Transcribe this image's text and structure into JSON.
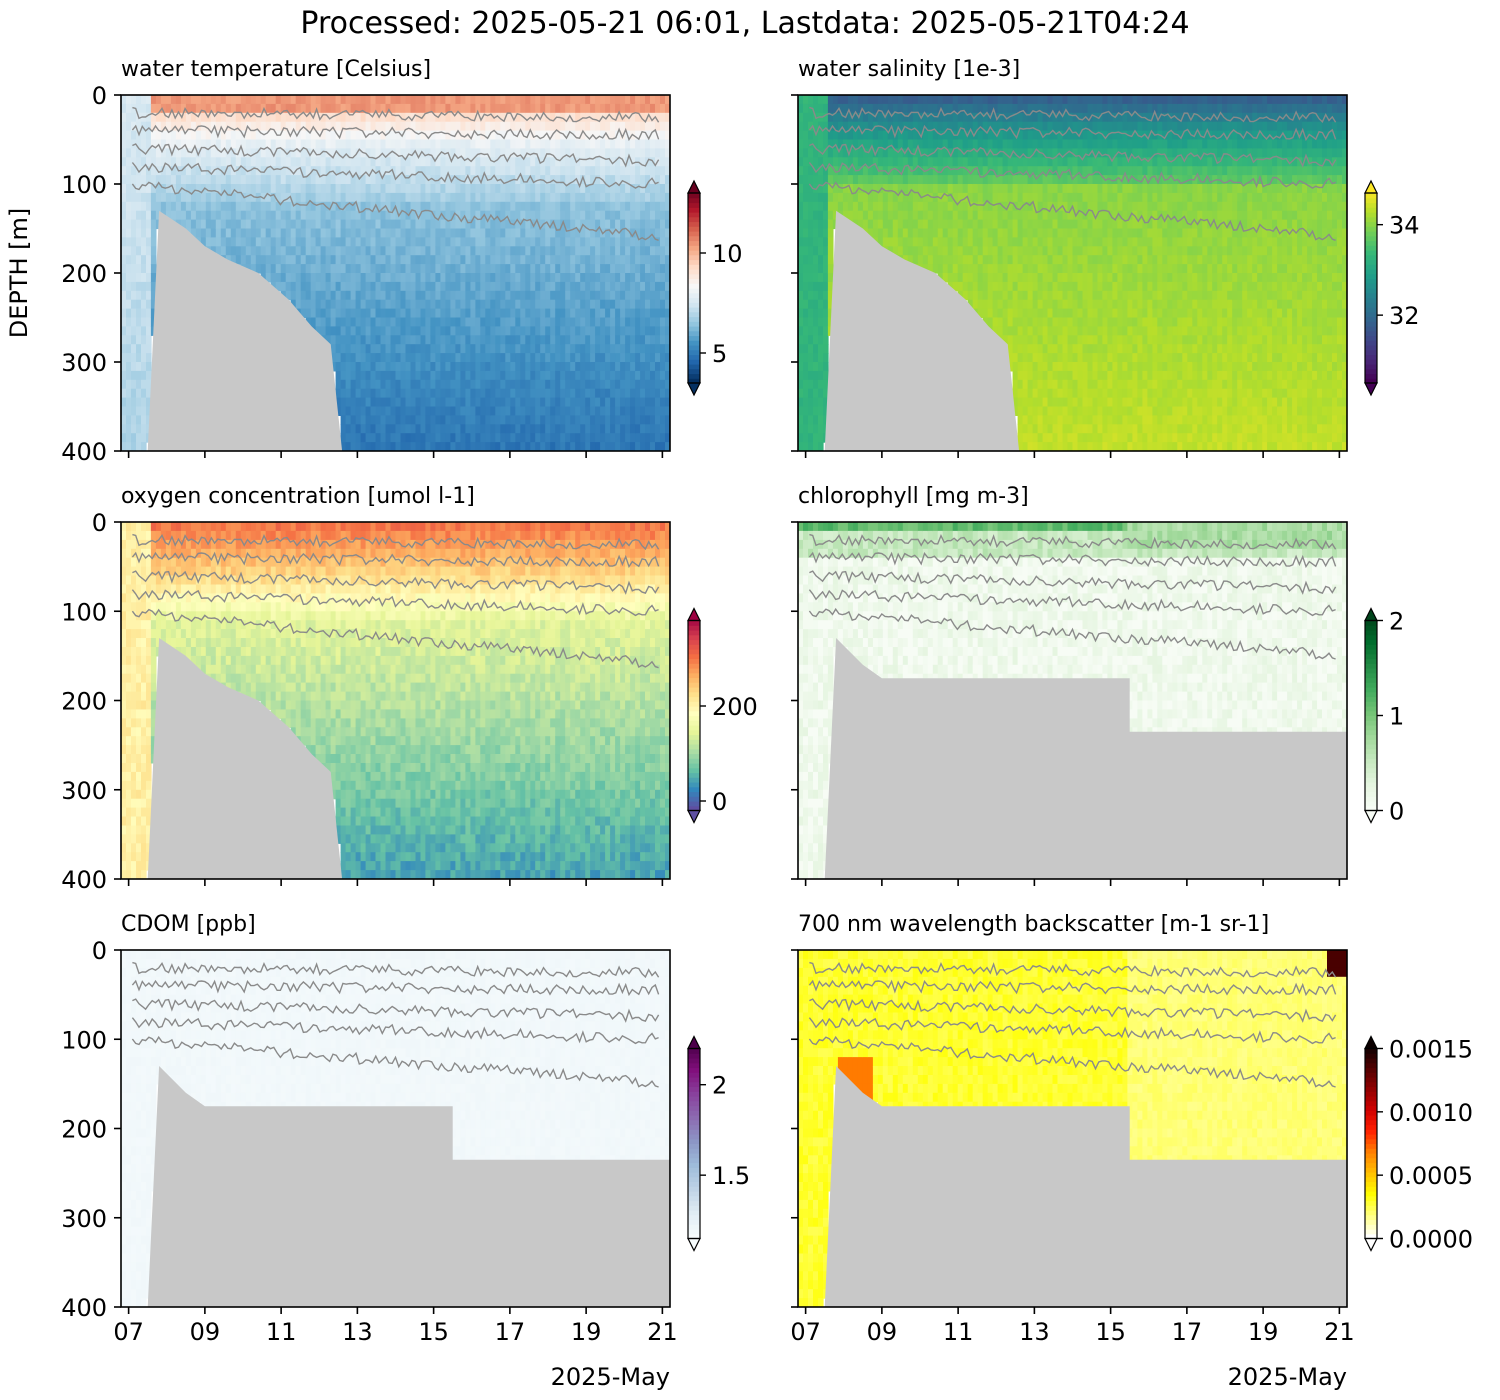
{
  "figure": {
    "title": "Processed: 2025-05-21 06:01, Lastdata: 2025-05-21T04:24",
    "ylabel": "DEPTH [m]",
    "xunit": "2025-May"
  },
  "colors": {
    "bathymetry": "#c8c8c8",
    "contour": "#8a8a8a"
  },
  "chart_data": [
    {
      "type": "heatmap",
      "title": "water temperature [Celsius]",
      "variable": "temperature",
      "colormap": "RdBu_r",
      "cbar_ticks": [
        5,
        10
      ],
      "cbar_range": [
        3.5,
        13.0
      ],
      "x_ticks": [
        "07",
        "09",
        "11",
        "13",
        "15",
        "17",
        "19",
        "21"
      ],
      "x_range_days": [
        6.8,
        21.2
      ],
      "y_ticks": [
        0,
        100,
        200,
        300,
        400
      ],
      "ylim": [
        400,
        0
      ],
      "contour_depths_m": [
        [
          20,
          25
        ],
        [
          40,
          45
        ],
        [
          60,
          75
        ],
        [
          80,
          100
        ],
        [
          100,
          160
        ]
      ],
      "bathymetry_m": [
        [
          6.8,
          400
        ],
        [
          7.5,
          400
        ],
        [
          7.8,
          130
        ],
        [
          8.5,
          150
        ],
        [
          9.0,
          170
        ],
        [
          9.6,
          185
        ],
        [
          10.4,
          200
        ],
        [
          11.2,
          230
        ],
        [
          11.8,
          260
        ],
        [
          12.3,
          280
        ],
        [
          12.6,
          400
        ],
        [
          21.2,
          400
        ]
      ]
    },
    {
      "type": "heatmap",
      "title": "water salinity [1e-3]",
      "variable": "salinity",
      "colormap": "viridis",
      "cbar_ticks": [
        32,
        34
      ],
      "cbar_range": [
        30.5,
        34.7
      ],
      "x_ticks": [
        "07",
        "09",
        "11",
        "13",
        "15",
        "17",
        "19",
        "21"
      ],
      "x_range_days": [
        6.8,
        21.2
      ],
      "y_ticks": [
        0,
        100,
        200,
        300,
        400
      ],
      "ylim": [
        400,
        0
      ],
      "contour_depths_m": [
        [
          20,
          25
        ],
        [
          40,
          45
        ],
        [
          60,
          75
        ],
        [
          80,
          100
        ],
        [
          100,
          160
        ]
      ],
      "bathymetry_m": [
        [
          6.8,
          400
        ],
        [
          7.5,
          400
        ],
        [
          7.8,
          130
        ],
        [
          8.5,
          150
        ],
        [
          9.0,
          170
        ],
        [
          9.6,
          185
        ],
        [
          10.4,
          200
        ],
        [
          11.2,
          230
        ],
        [
          11.8,
          260
        ],
        [
          12.3,
          280
        ],
        [
          12.6,
          400
        ],
        [
          21.2,
          400
        ]
      ]
    },
    {
      "type": "heatmap",
      "title": "oxygen concentration [umol l-1]",
      "variable": "oxygen",
      "colormap": "Spectral_r",
      "cbar_ticks": [
        0,
        200
      ],
      "cbar_range": [
        -20,
        380
      ],
      "x_ticks": [
        "07",
        "09",
        "11",
        "13",
        "15",
        "17",
        "19",
        "21"
      ],
      "x_range_days": [
        6.8,
        21.2
      ],
      "y_ticks": [
        0,
        100,
        200,
        300,
        400
      ],
      "ylim": [
        400,
        0
      ],
      "contour_depths_m": [
        [
          20,
          25
        ],
        [
          40,
          45
        ],
        [
          60,
          75
        ],
        [
          80,
          100
        ],
        [
          100,
          160
        ]
      ],
      "bathymetry_m": [
        [
          6.8,
          400
        ],
        [
          7.5,
          400
        ],
        [
          7.8,
          130
        ],
        [
          8.5,
          150
        ],
        [
          9.0,
          170
        ],
        [
          9.6,
          185
        ],
        [
          10.4,
          200
        ],
        [
          11.2,
          230
        ],
        [
          11.8,
          260
        ],
        [
          12.3,
          280
        ],
        [
          12.6,
          400
        ],
        [
          21.2,
          400
        ]
      ]
    },
    {
      "type": "heatmap",
      "title": "chlorophyll [mg m-3]",
      "variable": "chlorophyll",
      "colormap": "Greens",
      "cbar_ticks": [
        0,
        1,
        2
      ],
      "cbar_range": [
        0,
        2
      ],
      "x_ticks": [
        "07",
        "09",
        "11",
        "13",
        "15",
        "17",
        "19",
        "21"
      ],
      "x_range_days": [
        6.8,
        21.2
      ],
      "y_ticks": [
        0,
        100,
        200,
        300,
        400
      ],
      "ylim": [
        400,
        0
      ],
      "contour_depths_m": [
        [
          20,
          25
        ],
        [
          40,
          45
        ],
        [
          60,
          75
        ],
        [
          80,
          100
        ],
        [
          100,
          150
        ]
      ],
      "bathymetry_m": [
        [
          6.8,
          400
        ],
        [
          7.5,
          400
        ],
        [
          7.8,
          130
        ],
        [
          8.5,
          160
        ],
        [
          9.0,
          175
        ],
        [
          15.5,
          175
        ],
        [
          15.5,
          235
        ],
        [
          21.2,
          235
        ]
      ]
    },
    {
      "type": "heatmap",
      "title": "CDOM [ppb]",
      "variable": "cdom",
      "colormap": "BuPu",
      "cbar_ticks": [
        1.5,
        2.0
      ],
      "cbar_range": [
        1.15,
        2.2
      ],
      "x_ticks": [
        "07",
        "09",
        "11",
        "13",
        "15",
        "17",
        "19",
        "21"
      ],
      "x_range_days": [
        6.8,
        21.2
      ],
      "y_ticks": [
        0,
        100,
        200,
        300,
        400
      ],
      "ylim": [
        400,
        0
      ],
      "contour_depths_m": [
        [
          20,
          25
        ],
        [
          40,
          45
        ],
        [
          60,
          75
        ],
        [
          80,
          100
        ],
        [
          100,
          150
        ]
      ],
      "bathymetry_m": [
        [
          6.8,
          400
        ],
        [
          7.5,
          400
        ],
        [
          7.8,
          130
        ],
        [
          8.5,
          160
        ],
        [
          9.0,
          175
        ],
        [
          15.5,
          175
        ],
        [
          15.5,
          235
        ],
        [
          21.2,
          235
        ]
      ]
    },
    {
      "type": "heatmap",
      "title": "700 nm wavelength backscatter [m-1 sr-1]",
      "variable": "backscatter",
      "colormap": "hot_r",
      "cbar_ticks": [
        0.0,
        0.0005,
        0.001,
        0.0015
      ],
      "cbar_tick_labels": [
        "0.0000",
        "0.0005",
        "0.0010",
        "0.0015"
      ],
      "cbar_range": [
        0,
        0.0015
      ],
      "x_ticks": [
        "07",
        "09",
        "11",
        "13",
        "15",
        "17",
        "19",
        "21"
      ],
      "x_range_days": [
        6.8,
        21.2
      ],
      "y_ticks": [
        0,
        100,
        200,
        300,
        400
      ],
      "ylim": [
        400,
        0
      ],
      "contour_depths_m": [
        [
          20,
          25
        ],
        [
          40,
          45
        ],
        [
          60,
          75
        ],
        [
          80,
          100
        ],
        [
          100,
          150
        ]
      ],
      "bathymetry_m": [
        [
          6.8,
          400
        ],
        [
          7.5,
          400
        ],
        [
          7.8,
          130
        ],
        [
          8.5,
          160
        ],
        [
          9.0,
          175
        ],
        [
          15.5,
          175
        ],
        [
          15.5,
          235
        ],
        [
          21.2,
          235
        ]
      ]
    }
  ]
}
